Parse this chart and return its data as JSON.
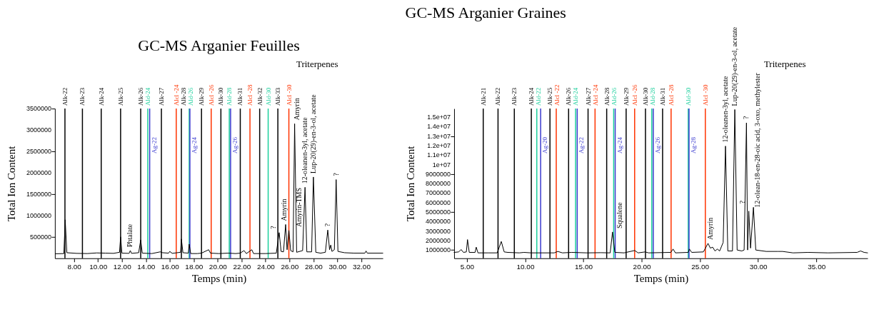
{
  "chart_data": [
    {
      "type": "line",
      "title": "GC-MS Arganier Feuilles",
      "xlabel": "Temps (min)",
      "ylabel": "Total Ion Content",
      "x": [
        6.45,
        7.15,
        7.26,
        7.4,
        8.2,
        9.1,
        9.9,
        10.6,
        11.3,
        11.8,
        11.89,
        12.0,
        12.6,
        12.7,
        12.8,
        13.4,
        13.57,
        13.7,
        14.5,
        15.2,
        15.4,
        15.9,
        16.0,
        16.2,
        16.9,
        16.97,
        17.1,
        17.55,
        17.62,
        17.75,
        18.3,
        18.65,
        19.25,
        19.4,
        20.1,
        20.9,
        21.5,
        21.89,
        22.2,
        22.4,
        22.85,
        23.0,
        24.0,
        24.9,
        25.14,
        25.3,
        25.5,
        25.68,
        25.8,
        25.95,
        26.1,
        26.3,
        26.43,
        26.6,
        27.1,
        27.3,
        27.45,
        27.85,
        28.0,
        28.2,
        28.6,
        29.0,
        29.2,
        29.35,
        29.45,
        29.55,
        29.75,
        29.9,
        30.05,
        30.6,
        31.4,
        32.3,
        32.4,
        32.5,
        33.8
      ],
      "series": [
        {
          "color": "#000000",
          "values": [
            105000,
            110000,
            900000,
            130000,
            115000,
            110000,
            125000,
            120000,
            115000,
            140000,
            500000,
            120000,
            115000,
            180000,
            115000,
            130000,
            430000,
            120000,
            110000,
            150000,
            130000,
            120000,
            160000,
            115000,
            140000,
            450000,
            130000,
            120000,
            330000,
            110000,
            110000,
            120000,
            200000,
            120000,
            110000,
            120000,
            110000,
            120000,
            180000,
            110000,
            200000,
            110000,
            110000,
            120000,
            600000,
            160000,
            150000,
            790000,
            200000,
            650000,
            180000,
            150000,
            3145000,
            140000,
            180000,
            1660000,
            150000,
            150000,
            1900000,
            140000,
            120000,
            140000,
            660000,
            200000,
            310000,
            160000,
            200000,
            1840000,
            160000,
            130000,
            120000,
            120000,
            170000,
            120000,
            120000
          ]
        }
      ],
      "xlim": [
        6.4,
        33.8
      ],
      "ylim": [
        0,
        3500000
      ],
      "xticks": [
        {
          "value": 8,
          "label": "8.00"
        },
        {
          "value": 10,
          "label": "10.00"
        },
        {
          "value": 12,
          "label": "12.00"
        },
        {
          "value": 14,
          "label": "14.00"
        },
        {
          "value": 16,
          "label": "16.00"
        },
        {
          "value": 18,
          "label": "18.00"
        },
        {
          "value": 20,
          "label": "20.00"
        },
        {
          "value": 22,
          "label": "22.00"
        },
        {
          "value": 24,
          "label": "24.00"
        },
        {
          "value": 26,
          "label": "26.00"
        },
        {
          "value": 28,
          "label": "28.00"
        },
        {
          "value": 30,
          "label": "30.00"
        },
        {
          "value": 32,
          "label": "32.00"
        }
      ],
      "yticks": [
        500000,
        1000000,
        1500000,
        2000000,
        2500000,
        3000000,
        3500000
      ],
      "ref_lines": [
        {
          "axis": "x",
          "value": 7.24,
          "label": "Alk-22",
          "color": "#000000"
        },
        {
          "axis": "x",
          "value": 8.7,
          "label": "Alk-23",
          "color": "#000000"
        },
        {
          "axis": "x",
          "value": 10.27,
          "label": "Alk-24",
          "color": "#000000"
        },
        {
          "axis": "x",
          "value": 11.89,
          "label": "Alk-25",
          "color": "#000000"
        },
        {
          "axis": "x",
          "value": 13.57,
          "label": "Alk-26",
          "color": "#000000"
        },
        {
          "axis": "x",
          "value": 14.16,
          "label": "Ald-24",
          "color": "#1ccf9c"
        },
        {
          "axis": "x",
          "value": 14.32,
          "label": "Ag-22",
          "color": "#3a3acf"
        },
        {
          "axis": "x",
          "value": 15.3,
          "label": "Alk-27",
          "color": "#000000"
        },
        {
          "axis": "x",
          "value": 16.54,
          "label": "Alcl -24",
          "color": "#ff3300"
        },
        {
          "axis": "x",
          "value": 16.97,
          "label": "Alk-28",
          "color": "#000000"
        },
        {
          "axis": "x",
          "value": 17.62,
          "label": "Ald-26",
          "color": "#1ccf9c"
        },
        {
          "axis": "x",
          "value": 17.68,
          "label": "Ag-24",
          "color": "#3a3acf"
        },
        {
          "axis": "x",
          "value": 18.65,
          "label": "Alk-29",
          "color": "#000000"
        },
        {
          "axis": "x",
          "value": 19.46,
          "label": "Alcl -26",
          "color": "#ff3300"
        },
        {
          "axis": "x",
          "value": 20.27,
          "label": "Alk-30",
          "color": "#000000"
        },
        {
          "axis": "x",
          "value": 20.97,
          "label": "Ald-28",
          "color": "#1ccf9c"
        },
        {
          "axis": "x",
          "value": 21.08,
          "label": "Ag-26",
          "color": "#3a3acf"
        },
        {
          "axis": "x",
          "value": 21.89,
          "label": "Alk-31",
          "color": "#000000"
        },
        {
          "axis": "x",
          "value": 22.7,
          "label": "Alcl -28",
          "color": "#ff3300"
        },
        {
          "axis": "x",
          "value": 23.51,
          "label": "Alk-32",
          "color": "#000000"
        },
        {
          "axis": "x",
          "value": 24.22,
          "label": "Ald-30",
          "color": "#1ccf9c"
        },
        {
          "axis": "x",
          "value": 25.03,
          "label": "Alk-33",
          "color": "#000000"
        },
        {
          "axis": "x",
          "value": 25.95,
          "label": "Alcl -30",
          "color": "#ff3300"
        }
      ],
      "annotations": [
        "Triterpenes",
        {
          "text": "Phtalate",
          "x": 12.7,
          "y": 180000
        },
        {
          "text": "?",
          "x": 25.14,
          "y": 600000
        },
        {
          "text": "Amyrin",
          "x": 25.68,
          "y": 790000
        },
        {
          "text": "Amyrin-TMS",
          "x": 25.95,
          "y": 650000
        },
        {
          "text": "Amyrin",
          "x": 26.43,
          "y": 3145000
        },
        {
          "text": "12-oleanen-3yl, acetate",
          "x": 27.3,
          "y": 1660000
        },
        {
          "text": "Lup-20(29)-en-3-ol, acetate",
          "x": 28.0,
          "y": 1900000
        },
        {
          "text": "?",
          "x": 29.2,
          "y": 660000
        },
        {
          "text": "?",
          "x": 29.9,
          "y": 1840000
        }
      ]
    },
    {
      "type": "line",
      "title": "GC-MS Arganier Graines",
      "xlabel": "Temps (min)",
      "ylabel": "Total Ion Content",
      "x": [
        3.9,
        4.3,
        4.5,
        4.7,
        4.95,
        5.05,
        5.2,
        5.7,
        5.8,
        5.95,
        6.8,
        7.6,
        7.95,
        8.2,
        8.5,
        9.5,
        9.9,
        10.5,
        12.5,
        12.8,
        13.2,
        14.0,
        15.3,
        16.5,
        17.3,
        17.5,
        17.7,
        18.5,
        19.4,
        19.7,
        20.3,
        20.6,
        22.5,
        22.7,
        22.9,
        24.0,
        24.1,
        24.3,
        25.3,
        25.7,
        25.9,
        26.1,
        26.3,
        26.5,
        26.7,
        27.0,
        27.2,
        27.4,
        27.8,
        28.0,
        28.2,
        28.6,
        28.8,
        29.0,
        29.1,
        29.2,
        29.35,
        29.6,
        29.8,
        30.7,
        31.7,
        32.1,
        33.0,
        34.3,
        36.0,
        38.5,
        38.8,
        39.1,
        39.4
      ],
      "series": [
        {
          "color": "#000000",
          "values": [
            750000,
            800000,
            1050000,
            750000,
            800000,
            2100000,
            750000,
            750000,
            1300000,
            700000,
            700000,
            700000,
            1900000,
            800000,
            750000,
            700000,
            750000,
            700000,
            700000,
            850000,
            700000,
            750000,
            700000,
            720000,
            700000,
            2900000,
            750000,
            700000,
            950000,
            700000,
            800000,
            700000,
            750000,
            1100000,
            700000,
            750000,
            1100000,
            750000,
            800000,
            1700000,
            1200000,
            1300000,
            900000,
            1100000,
            900000,
            1800000,
            11950000,
            900000,
            900000,
            15800000,
            1000000,
            900000,
            1000000,
            14400000,
            1000000,
            5100000,
            1200000,
            5500000,
            1000000,
            850000,
            850000,
            850000,
            700000,
            750000,
            700000,
            750000,
            900000,
            750000,
            700000
          ]
        }
      ],
      "xlim": [
        3.9,
        39.4
      ],
      "ylim": [
        130000,
        15900000
      ],
      "xticks": [
        {
          "value": 5,
          "label": "5.00"
        },
        {
          "value": 10,
          "label": "10.00"
        },
        {
          "value": 15,
          "label": "15.00"
        },
        {
          "value": 20,
          "label": "20.00"
        },
        {
          "value": 25,
          "label": "25.00"
        },
        {
          "value": 30,
          "label": "30.00"
        },
        {
          "value": 35,
          "label": "35.00"
        }
      ],
      "yticks": [
        1000000,
        2000000,
        3000000,
        4000000,
        5000000,
        6000000,
        7000000,
        8000000,
        9000000,
        {
          "value": 10000000,
          "label": "1e+07"
        },
        {
          "value": 11000000,
          "label": "1.1e+07"
        },
        {
          "value": 12000000,
          "label": "1.2e+07"
        },
        {
          "value": 13000000,
          "label": "1.3e+07"
        },
        {
          "value": 14000000,
          "label": "1.4e+07"
        },
        {
          "value": 15000000,
          "label": "1.5e+07"
        }
      ],
      "ref_lines": [
        {
          "axis": "x",
          "value": 6.4,
          "label": "Alk-21",
          "color": "#000000"
        },
        {
          "axis": "x",
          "value": 7.67,
          "label": "Alk-22",
          "color": "#000000"
        },
        {
          "axis": "x",
          "value": 9.07,
          "label": "Alk-23",
          "color": "#000000"
        },
        {
          "axis": "x",
          "value": 10.53,
          "label": "Alk-24",
          "color": "#000000"
        },
        {
          "axis": "x",
          "value": 11.0,
          "label": "Ald-22",
          "color": "#1ccf9c"
        },
        {
          "axis": "x",
          "value": 11.33,
          "label": "Ag-20",
          "color": "#3a3acf"
        },
        {
          "axis": "x",
          "value": 12.13,
          "label": "Alk-25",
          "color": "#000000"
        },
        {
          "axis": "x",
          "value": 12.67,
          "label": "Alcl -22",
          "color": "#ff3300"
        },
        {
          "axis": "x",
          "value": 13.73,
          "label": "Alk-26",
          "color": "#000000"
        },
        {
          "axis": "x",
          "value": 14.33,
          "label": "Ald-24",
          "color": "#1ccf9c"
        },
        {
          "axis": "x",
          "value": 14.47,
          "label": "Ag-22",
          "color": "#3a3acf"
        },
        {
          "axis": "x",
          "value": 15.4,
          "label": "Alk-27",
          "color": "#000000"
        },
        {
          "axis": "x",
          "value": 16.0,
          "label": "Alcl -24",
          "color": "#ff3300"
        },
        {
          "axis": "x",
          "value": 17.0,
          "label": "Alk-28",
          "color": "#000000"
        },
        {
          "axis": "x",
          "value": 17.6,
          "label": "Ald-26",
          "color": "#1ccf9c"
        },
        {
          "axis": "x",
          "value": 17.73,
          "label": "Ag-24",
          "color": "#3a3acf"
        },
        {
          "axis": "x",
          "value": 18.67,
          "label": "Alk-29",
          "color": "#000000"
        },
        {
          "axis": "x",
          "value": 19.4,
          "label": "Alcl -26",
          "color": "#ff3300"
        },
        {
          "axis": "x",
          "value": 20.33,
          "label": "Alk-30",
          "color": "#000000"
        },
        {
          "axis": "x",
          "value": 20.87,
          "label": "Ald-28",
          "color": "#1ccf9c"
        },
        {
          "axis": "x",
          "value": 21.0,
          "label": "Ag-26",
          "color": "#3a3acf"
        },
        {
          "axis": "x",
          "value": 21.8,
          "label": "Alk-31",
          "color": "#000000"
        },
        {
          "axis": "x",
          "value": 22.53,
          "label": "Alcl -28",
          "color": "#ff3300"
        },
        {
          "axis": "x",
          "value": 24.0,
          "label": "Ald-30",
          "color": "#1ccf9c"
        },
        {
          "axis": "x",
          "value": 24.07,
          "label": "Ag-28",
          "color": "#3a3acf"
        },
        {
          "axis": "x",
          "value": 25.47,
          "label": "Alcl -30",
          "color": "#ff3300"
        }
      ],
      "annotations": [
        "Triterpenes",
        {
          "text": "Squalene",
          "x": 17.5,
          "y": 2900000
        },
        {
          "text": "Amyrin",
          "x": 25.7,
          "y": 1700000
        },
        {
          "text": "12-oleanen-3yl, acetate",
          "x": 27.2,
          "y": 11950000
        },
        {
          "text": "Lup-20(29)-en-3-ol, acetate",
          "x": 28.0,
          "y": 15800000
        },
        {
          "text": "?",
          "x": 29.0,
          "y": 14400000
        },
        {
          "text": "12-olean-18-en-28-oic acid, 3-oxo, methylester",
          "x": 29.2,
          "y": 5100000
        },
        {
          "text": "?",
          "x": 29.6,
          "y": 5500000
        }
      ]
    }
  ]
}
